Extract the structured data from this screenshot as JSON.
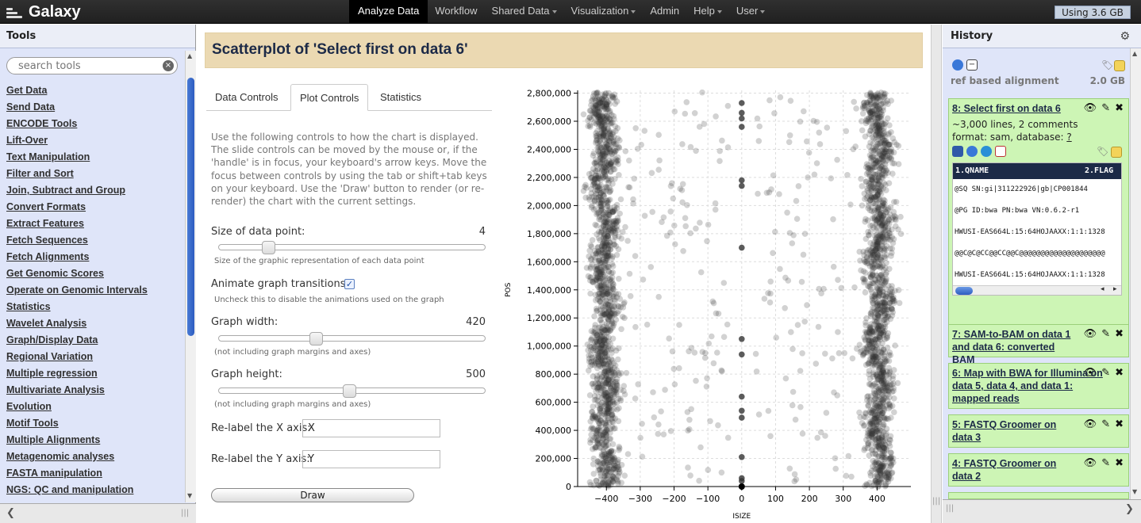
{
  "masthead": {
    "brand": "Galaxy",
    "nav": [
      {
        "label": "Analyze Data",
        "active": true,
        "dropdown": false
      },
      {
        "label": "Workflow",
        "active": false,
        "dropdown": false
      },
      {
        "label": "Shared Data",
        "active": false,
        "dropdown": true
      },
      {
        "label": "Visualization",
        "active": false,
        "dropdown": true
      },
      {
        "label": "Admin",
        "active": false,
        "dropdown": false
      },
      {
        "label": "Help",
        "active": false,
        "dropdown": true
      },
      {
        "label": "User",
        "active": false,
        "dropdown": true
      }
    ],
    "quota": "Using 3.6 GB"
  },
  "tools": {
    "title": "Tools",
    "search_placeholder": "search tools",
    "items": [
      "Get Data",
      "Send Data",
      "ENCODE Tools",
      "Lift-Over",
      "Text Manipulation",
      "Filter and Sort",
      "Join, Subtract and Group",
      "Convert Formats",
      "Extract Features",
      "Fetch Sequences",
      "Fetch Alignments",
      "Get Genomic Scores",
      "Operate on Genomic Intervals",
      "Statistics",
      "Wavelet Analysis",
      "Graph/Display Data",
      "Regional Variation",
      "Multiple regression",
      "Multivariate Analysis",
      "Evolution",
      "Motif Tools",
      "Multiple Alignments",
      "Metagenomic analyses",
      "FASTA manipulation",
      "NGS: QC and manipulation"
    ]
  },
  "center": {
    "title": "Scatterplot of 'Select first on data 6'",
    "tabs": [
      "Data Controls",
      "Plot Controls",
      "Statistics"
    ],
    "active_tab": 1,
    "help": "Use the following controls to how the chart is displayed. The slide controls can be moved by the mouse or, if the 'handle' is in focus, your keyboard's arrow keys. Move the focus between controls by using the tab or shift+tab keys on your keyboard. Use the 'Draw' button to render (or re-render) the chart with the current settings.",
    "point_size": {
      "label": "Size of data point:",
      "value": "4",
      "help": "Size of the graphic representation of each data point",
      "level": 0.17
    },
    "animate": {
      "label": "Animate graph transitions?:",
      "checked": true,
      "help": "Uncheck this to disable the animations used on the graph"
    },
    "graph_width": {
      "label": "Graph width:",
      "value": "420",
      "help": "(not including graph margins and axes)",
      "level": 0.36
    },
    "graph_height": {
      "label": "Graph height:",
      "value": "500",
      "help": "(not including graph margins and axes)",
      "level": 0.49
    },
    "x_axis": {
      "label": "Re-label the X axis:",
      "value": "X"
    },
    "y_axis": {
      "label": "Re-label the Y axis:",
      "value": "Y"
    },
    "draw_label": "Draw"
  },
  "chart_data": {
    "type": "scatter",
    "xlabel": "ISIZE",
    "ylabel": "POS",
    "xlim": [
      -485,
      500
    ],
    "ylim": [
      0,
      2820000
    ],
    "x_ticks": [
      -400,
      -300,
      -200,
      -100,
      0,
      100,
      200,
      300,
      400
    ],
    "y_ticks": [
      0,
      200000,
      400000,
      600000,
      800000,
      1000000,
      1200000,
      1400000,
      1600000,
      1800000,
      2000000,
      2200000,
      2400000,
      2600000,
      2800000
    ],
    "x_tick_labels": [
      "−400",
      "−300",
      "−200",
      "−100",
      "0",
      "100",
      "200",
      "300",
      "400"
    ],
    "y_tick_labels": [
      "0",
      "200,000",
      "400,000",
      "600,000",
      "800,000",
      "1,000,000",
      "1,200,000",
      "1,400,000",
      "1,600,000",
      "1,800,000",
      "2,000,000",
      "2,200,000",
      "2,400,000",
      "2,600,000",
      "2,800,000"
    ],
    "grid": true,
    "clusters": [
      {
        "name_hidden": true,
        "x_center": -405,
        "x_spread": 40,
        "count": 1500
      },
      {
        "name_hidden": true,
        "x_center": 405,
        "x_spread": 40,
        "count": 1500
      }
    ],
    "zero_points": [
      0,
      40000,
      60000,
      210000,
      490000,
      540000,
      640000,
      940000,
      1050000,
      1700000,
      2140000,
      2180000,
      2560000,
      2620000,
      2660000,
      2730000
    ],
    "point_color": "#333333"
  },
  "history": {
    "title": "History",
    "name": "ref based alignment",
    "size": "2.0 GB",
    "datasets": [
      {
        "title": "8: Select first on data 6",
        "lines": "~3,000 lines, 2 comments",
        "format": "format: sam, database: ",
        "db": "?"
      },
      {
        "title": "7: SAM-to-BAM on data 1 and data 6: converted BAM"
      },
      {
        "title": "6: Map with BWA for Illumina on data 5, data 4, and data 1: mapped reads"
      },
      {
        "title": "5: FASTQ Groomer on data 3"
      },
      {
        "title": "4: FASTQ Groomer on data 2"
      }
    ],
    "peek_header": [
      "1.QNAME",
      "2.FLAG"
    ],
    "peek_rows": [
      "@SQ     SN:gi|311222926|gb|CP001844",
      "@PG     ID:bwa  PN:bwa  VN:0.6.2-r1",
      "HWUSI-EAS664L:15:64HOJAAXX:1:1:1328",
      "@@C@C@CC@@CC@@C@@@@@@@@@@@@@@@@@@@@",
      "HWUSI-EAS664L:15:64HOJAAXX:1:1:1328",
      "###################################"
    ]
  }
}
